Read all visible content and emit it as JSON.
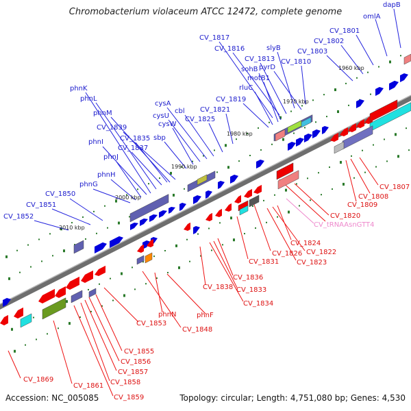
{
  "title": "Chromobacterium violaceum ATCC 12472, complete genome",
  "footer": {
    "accession": "Accession: NC_005085",
    "summary": "Topology: circular; Length: 4,751,080 bp; Genes: 4,530"
  },
  "colors": {
    "forward": "#0000cc",
    "reverse": "#dd0000",
    "trna": "#ee88cc",
    "backbone": "#6e6e6e"
  },
  "scale_labels": [
    "1960 kbp",
    "1970 kbp",
    "1980 kbp",
    "1990 kbp",
    "2000 kbp",
    "2010 kbp"
  ],
  "forward_labels": [
    "dapB",
    "omlA",
    "CV_1801",
    "CV_1802",
    "CV_1803",
    "CV_1810",
    "pyrD",
    "slyB",
    "CV_1813",
    "CV_1816",
    "CV_1817",
    "sohB",
    "motB1",
    "rluC",
    "CV_1819",
    "CV_1821",
    "CV_1825",
    "cbl",
    "cysA",
    "cysU",
    "cysW",
    "sbp",
    "CV_1835",
    "CV_1837",
    "CV_1839",
    "phnM",
    "phnL",
    "phnK",
    "phnI",
    "phnJ",
    "phnH",
    "phnG",
    "CV_1850",
    "CV_1851",
    "CV_1852"
  ],
  "reverse_labels": [
    "CV_1807",
    "CV_1808",
    "CV_1809",
    "CV_1820",
    "CV_tRNAAsnGTT4",
    "CV_1824",
    "CV_1822",
    "CV_1823",
    "CV_1826",
    "CV_1831",
    "CV_1836",
    "CV_1838",
    "CV_1833",
    "CV_1834",
    "phnF",
    "phnN",
    "CV_1848",
    "CV_1853",
    "CV_1855",
    "CV_1856",
    "CV_1857",
    "CV_1858",
    "CV_1859",
    "CV_1861",
    "CV_1869"
  ]
}
